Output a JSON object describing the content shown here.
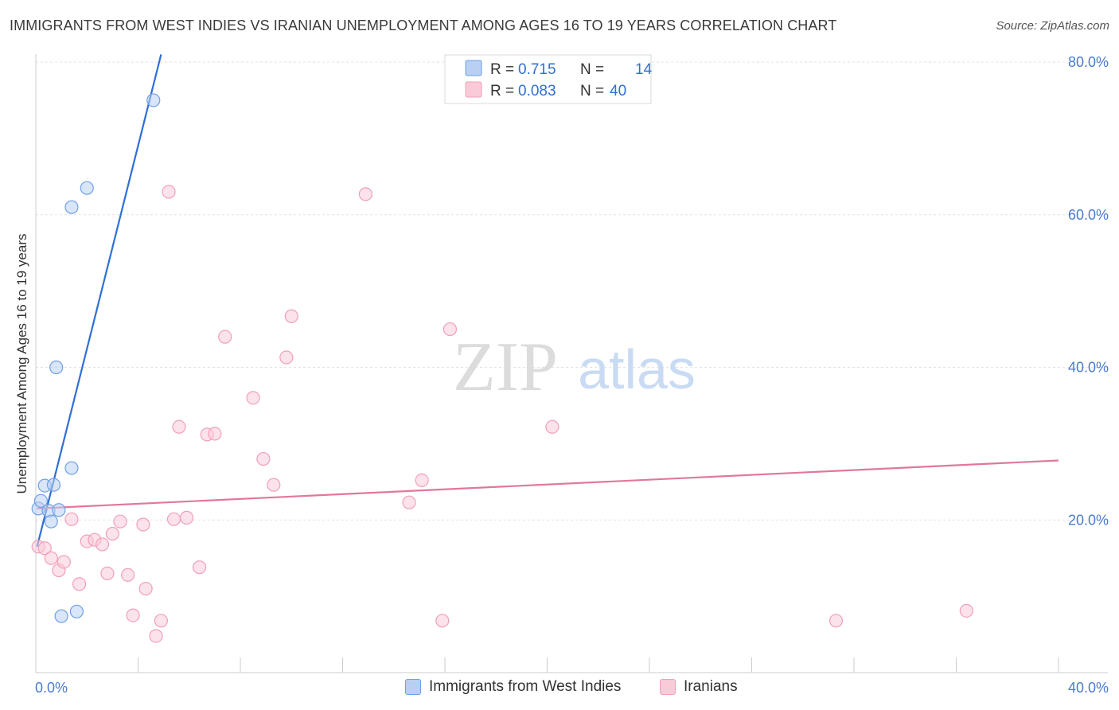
{
  "title": "IMMIGRANTS FROM WEST INDIES VS IRANIAN UNEMPLOYMENT AMONG AGES 16 TO 19 YEARS CORRELATION CHART",
  "source": "Source: ZipAtlas.com",
  "watermark": {
    "zip": "ZIP",
    "atlas": "atlas"
  },
  "chart_data": {
    "type": "scatter",
    "ylabel": "Unemployment Among Ages 16 to 19 years",
    "xlim": [
      0,
      40
    ],
    "ylim": [
      0,
      80
    ],
    "x_tick_labels": [
      "0.0%",
      "40.0%"
    ],
    "y_ticks": [
      20,
      40,
      60,
      80
    ],
    "y_tick_labels": [
      "20.0%",
      "40.0%",
      "60.0%",
      "80.0%"
    ],
    "grid": true,
    "legend_stats": [
      {
        "r_label": "R =",
        "r_value": "0.715",
        "n_label": "N =",
        "n_value": "14"
      },
      {
        "r_label": "R =",
        "r_value": "0.083",
        "n_label": "N =",
        "n_value": "40"
      }
    ],
    "series": [
      {
        "name": "Immigrants from West Indies",
        "color": "#6fa0e6",
        "fill": "#b9d0f3",
        "line_color": "#2f6fd6",
        "trend": {
          "x": [
            0.05,
            4.9
          ],
          "y": [
            16.5,
            81
          ]
        },
        "points": [
          {
            "x": 0.1,
            "y": 21.5
          },
          {
            "x": 0.2,
            "y": 22.5
          },
          {
            "x": 0.35,
            "y": 24.5
          },
          {
            "x": 0.5,
            "y": 21.2
          },
          {
            "x": 0.6,
            "y": 19.8
          },
          {
            "x": 0.7,
            "y": 24.6
          },
          {
            "x": 0.8,
            "y": 40.0
          },
          {
            "x": 0.9,
            "y": 21.3
          },
          {
            "x": 1.0,
            "y": 7.4
          },
          {
            "x": 1.4,
            "y": 26.8
          },
          {
            "x": 1.4,
            "y": 61.0
          },
          {
            "x": 1.6,
            "y": 8.0
          },
          {
            "x": 2.0,
            "y": 63.5
          },
          {
            "x": 4.6,
            "y": 75.0
          }
        ]
      },
      {
        "name": "Iranians",
        "color": "#f0a0b8",
        "fill": "#f9cad8",
        "line_color": "#e0789a",
        "trend": {
          "x": [
            0.05,
            40
          ],
          "y": [
            21.5,
            27.8
          ]
        },
        "points": [
          {
            "x": 0.1,
            "y": 16.5
          },
          {
            "x": 0.35,
            "y": 16.3
          },
          {
            "x": 0.6,
            "y": 15.0
          },
          {
            "x": 0.9,
            "y": 13.4
          },
          {
            "x": 1.1,
            "y": 14.5
          },
          {
            "x": 1.4,
            "y": 20.1
          },
          {
            "x": 1.7,
            "y": 11.6
          },
          {
            "x": 2.0,
            "y": 17.2
          },
          {
            "x": 2.3,
            "y": 17.4
          },
          {
            "x": 2.6,
            "y": 16.8
          },
          {
            "x": 2.8,
            "y": 13.0
          },
          {
            "x": 3.0,
            "y": 18.2
          },
          {
            "x": 3.3,
            "y": 19.8
          },
          {
            "x": 3.6,
            "y": 12.8
          },
          {
            "x": 3.8,
            "y": 7.5
          },
          {
            "x": 4.2,
            "y": 19.4
          },
          {
            "x": 4.3,
            "y": 11.0
          },
          {
            "x": 4.7,
            "y": 4.8
          },
          {
            "x": 4.9,
            "y": 6.8
          },
          {
            "x": 5.2,
            "y": 63.0
          },
          {
            "x": 5.4,
            "y": 20.1
          },
          {
            "x": 5.6,
            "y": 32.2
          },
          {
            "x": 5.9,
            "y": 20.3
          },
          {
            "x": 6.4,
            "y": 13.8
          },
          {
            "x": 6.7,
            "y": 31.2
          },
          {
            "x": 7.0,
            "y": 31.3
          },
          {
            "x": 7.4,
            "y": 44.0
          },
          {
            "x": 8.5,
            "y": 36.0
          },
          {
            "x": 8.9,
            "y": 28.0
          },
          {
            "x": 9.3,
            "y": 24.6
          },
          {
            "x": 9.8,
            "y": 41.3
          },
          {
            "x": 10.0,
            "y": 46.7
          },
          {
            "x": 12.9,
            "y": 62.7
          },
          {
            "x": 14.6,
            "y": 22.3
          },
          {
            "x": 15.1,
            "y": 25.2
          },
          {
            "x": 15.9,
            "y": 6.8
          },
          {
            "x": 16.2,
            "y": 45.0
          },
          {
            "x": 20.2,
            "y": 32.2
          },
          {
            "x": 31.3,
            "y": 6.8
          },
          {
            "x": 36.4,
            "y": 8.1
          }
        ]
      }
    ]
  }
}
